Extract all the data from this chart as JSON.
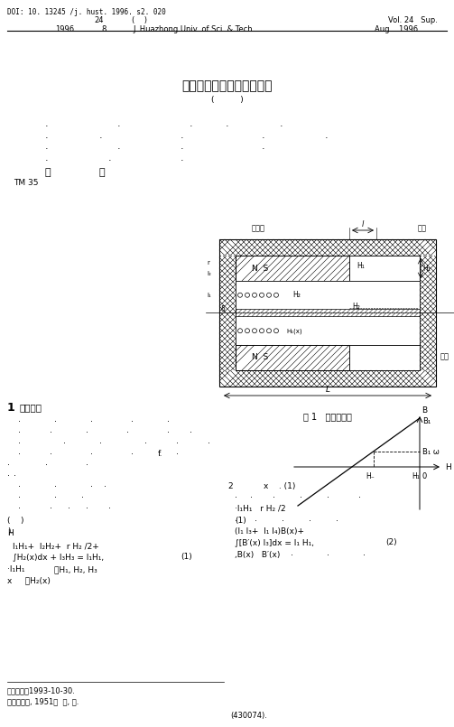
{
  "header_doi": "DOI: 10. 13245 /j. hust. 1996. s2. 020",
  "header_vol_left": "24        (    )",
  "header_vol_right": "Vol. 24   Sup.",
  "header_year_left": "1996    8",
  "header_journal": "J. Huazhong Univ. of Sci. & Tech.",
  "header_date_right": "Aug.   1996",
  "subtitle_bracket": "(          )",
  "tm_code": "TM 35",
  "fig1_caption": "图 1   电机剑面图",
  "yongciti": "永磁体",
  "huanggang": "礼轭",
  "zhizhu": "芜柱",
  "received_date": "收稿日期：1993-10-30.",
  "author_note": "作者：五岁, 1951年  和, 电.",
  "fund_note": "(430074).",
  "bg_color": "#ffffff",
  "text_color": "#000000"
}
